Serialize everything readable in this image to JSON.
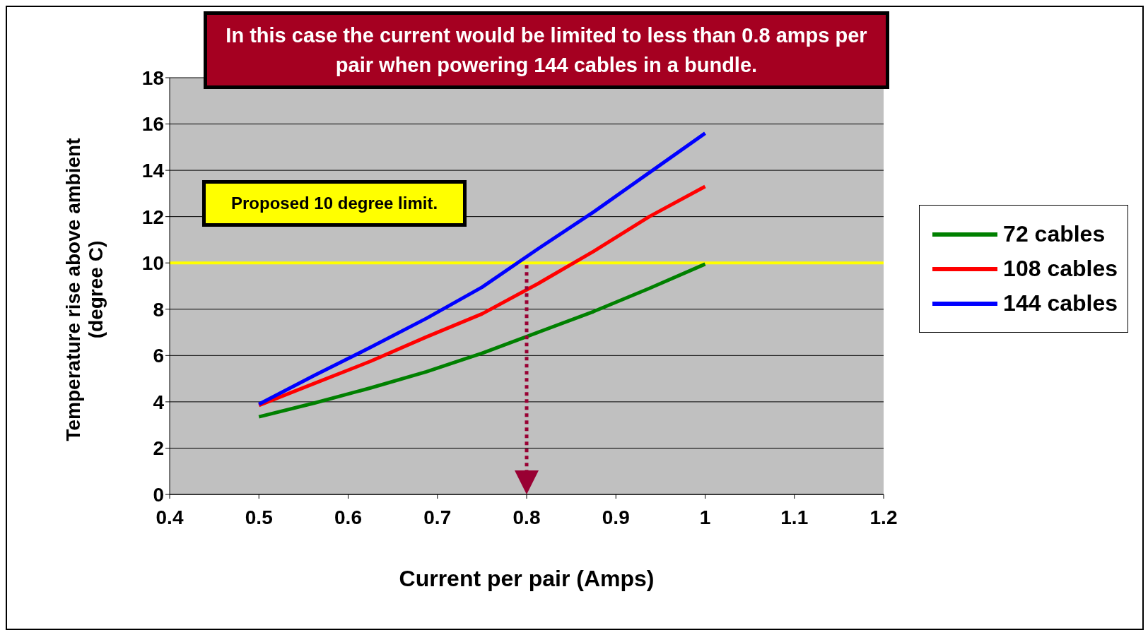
{
  "chart_data": {
    "type": "line",
    "title": "In this case the current would be limited to less than 0.8 amps per pair when powering 144 cables in a bundle.",
    "xlabel": "Current per pair (Amps)",
    "ylabel": "Temperature rise above ambient (degree C)",
    "x": [
      0.5,
      0.5625,
      0.625,
      0.6875,
      0.75,
      0.8125,
      0.875,
      0.9375,
      1.0
    ],
    "series": [
      {
        "name": "72 cables",
        "color": "#008000",
        "values": [
          3.35,
          3.95,
          4.6,
          5.3,
          6.1,
          7.0,
          7.9,
          8.9,
          9.95
        ]
      },
      {
        "name": "108 cables",
        "color": "#ff0000",
        "values": [
          3.85,
          4.8,
          5.75,
          6.8,
          7.8,
          9.1,
          10.5,
          12.0,
          13.3
        ]
      },
      {
        "name": "144 cables",
        "color": "#0000ff",
        "values": [
          3.9,
          5.15,
          6.35,
          7.6,
          8.95,
          10.6,
          12.2,
          13.9,
          15.6
        ]
      }
    ],
    "xlim": [
      0.4,
      1.2
    ],
    "xticks": [
      0.4,
      0.5,
      0.6,
      0.7,
      0.8,
      0.9,
      1,
      1.1,
      1.2
    ],
    "ylim": [
      0,
      18
    ],
    "yticks": [
      0,
      2,
      4,
      6,
      8,
      10,
      12,
      14,
      16,
      18
    ],
    "grid": "y",
    "legend": "right",
    "marker": "none",
    "line_style": "solid",
    "ref_lines": [
      {
        "axis": "y",
        "value": 10,
        "label": "Proposed 10 degree limit.",
        "color": "#ffff00",
        "line_style": "solid"
      },
      {
        "axis": "x",
        "value": 0.8,
        "color": "#990033",
        "line_style": "dotted"
      }
    ]
  }
}
